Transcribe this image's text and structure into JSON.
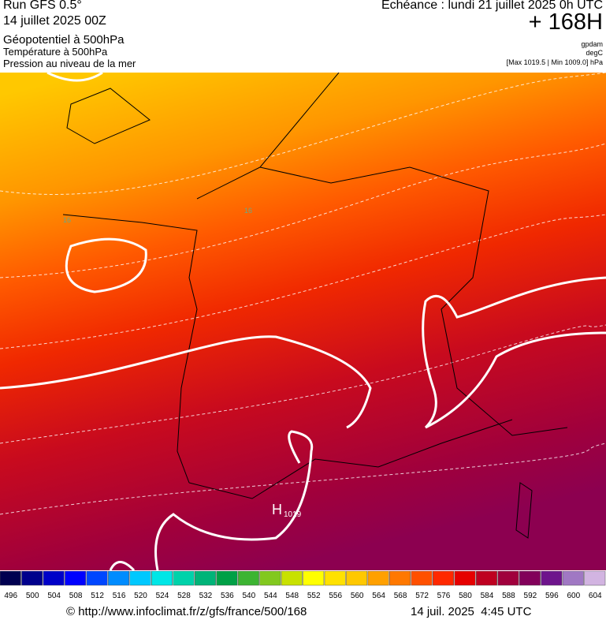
{
  "header": {
    "run": "Run GFS 0.5°",
    "date": "14 juillet 2025 00Z",
    "field1": "Géopotentiel à 500hPa",
    "field2": "Température à 500hPa",
    "field3": "Pression au niveau de la mer",
    "echeance": "Echéance : lundi 21 juillet 2025 0h UTC",
    "offset": "+ 168H",
    "unit1": "gpdam",
    "unit2": "degC",
    "range": "[Max 1019.5 | Min 1009.0] hPa"
  },
  "map": {
    "high_letter": "H",
    "high_value": "1019",
    "contour_labels": [
      "16",
      "16"
    ]
  },
  "colorbar": {
    "labels": [
      496,
      500,
      504,
      508,
      512,
      516,
      520,
      524,
      528,
      532,
      536,
      540,
      544,
      548,
      552,
      556,
      560,
      564,
      568,
      572,
      576,
      580,
      584,
      588,
      592,
      596,
      600,
      604
    ],
    "colors": [
      "#000050",
      "#00008c",
      "#0000c8",
      "#0000ff",
      "#0046ff",
      "#008cff",
      "#00c8ff",
      "#00e6e6",
      "#00d2aa",
      "#00b478",
      "#00a046",
      "#3cb432",
      "#82c81e",
      "#c8e100",
      "#ffff00",
      "#ffe100",
      "#ffc800",
      "#ffa000",
      "#ff7800",
      "#ff5000",
      "#ff2800",
      "#e60000",
      "#be0020",
      "#a0003c",
      "#82005a",
      "#6e148c",
      "#a078c3",
      "#d2b4e1"
    ]
  },
  "footer": {
    "url": "© http://www.infoclimat.fr/z/gfs/france/500/168",
    "timestamp": "14 juil. 2025  4:45 UTC"
  }
}
